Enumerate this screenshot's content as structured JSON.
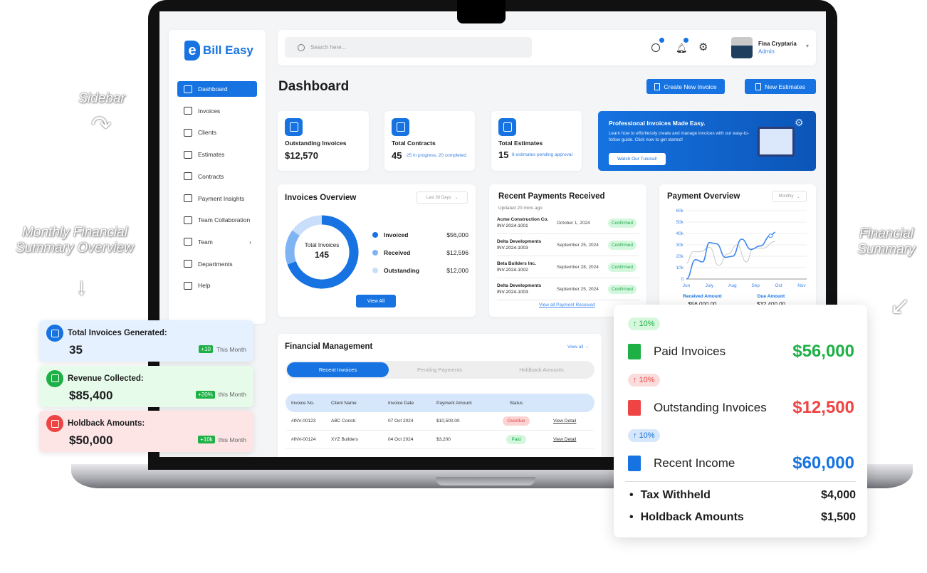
{
  "annotations": {
    "sidebar": "Sidebar",
    "monthly": "Monthly Financial Summary Overview",
    "financial": "Financial Summary"
  },
  "app": {
    "brand": "Bill Easy",
    "logo_letter": "e"
  },
  "sidebar": {
    "items": [
      {
        "label": "Dashboard",
        "icon": "dashboard-icon",
        "active": true
      },
      {
        "label": "Invoices",
        "icon": "invoice-icon"
      },
      {
        "label": "Clients",
        "icon": "clients-icon"
      },
      {
        "label": "Estimates",
        "icon": "estimates-icon"
      },
      {
        "label": "Contracts",
        "icon": "contracts-icon"
      },
      {
        "label": "Payment Insights",
        "icon": "insights-icon"
      },
      {
        "label": "Team Collaboration",
        "icon": "collaboration-icon"
      },
      {
        "label": "Team",
        "icon": "team-icon",
        "chevron": "›"
      },
      {
        "label": "Departments",
        "icon": "departments-icon"
      },
      {
        "label": "Help",
        "icon": "help-icon"
      }
    ]
  },
  "header": {
    "search_placeholder": "Search here...",
    "user_name": "Fina Cryptaria",
    "user_role": "Admin"
  },
  "page": {
    "title": "Dashboard",
    "create_invoice": "Create New Invoice",
    "new_estimates": "New Estimates"
  },
  "stats": [
    {
      "label": "Outstanding Invoices",
      "value": "$12,570",
      "sub": ""
    },
    {
      "label": "Total Contracts",
      "value": "45",
      "sub": "25 in progress, 20 completed"
    },
    {
      "label": "Total Estimates",
      "value": "15",
      "sub": "8 estimates pending approval"
    }
  ],
  "promo": {
    "title": "Professional Invoices Made Easy.",
    "text": "Learn how to effortlessly create and manage invoices with our easy-to-follow guide. Click now to get started!",
    "button": "Watch Our Tutorial!"
  },
  "invoices_overview": {
    "title": "Invoices Overview",
    "range": "Last 30 Days",
    "center_label": "Total Invoices",
    "center_value": "145",
    "view_all": "View All",
    "legend": [
      {
        "name": "Invoiced",
        "value": "$56,000",
        "amount": 56000,
        "color": "#1673e1"
      },
      {
        "name": "Received",
        "value": "$12,596",
        "amount": 12596,
        "color": "#7fb4f3"
      },
      {
        "name": "Outstanding",
        "value": "$12,000",
        "amount": 12000,
        "color": "#c9defa"
      }
    ]
  },
  "recent_payments": {
    "title": "Recent Payments Received",
    "updated": "Updated 20 mins ago",
    "link": "View all Payment Received",
    "rows": [
      {
        "client": "Acme Construction Co.",
        "invoice": "INV-2024-1001",
        "date": "October 1, 2024",
        "status": "Confirmed"
      },
      {
        "client": "Delta Developments",
        "invoice": "INV-2024-1003",
        "date": "September 25, 2024",
        "status": "Confirmed"
      },
      {
        "client": "Beta Builders Inc.",
        "invoice": "INV-2024-1002",
        "date": "September 28, 2024",
        "status": "Confirmed"
      },
      {
        "client": "Delta Developments",
        "invoice": "INV-2024-1003",
        "date": "September 25, 2024",
        "status": "Confirmed"
      }
    ]
  },
  "payment_overview": {
    "title": "Payment Overview",
    "range": "Monthly",
    "received_label": "Received Amount",
    "received_value": "$56,000.00",
    "due_label": "Due Amount",
    "due_value": "$32,400.00"
  },
  "chart_data": {
    "type": "line",
    "categories": [
      "Jun",
      "July",
      "Aug",
      "Sep",
      "Oct",
      "Nov"
    ],
    "yticks": [
      "0",
      "10k",
      "20k",
      "30k",
      "40k",
      "50k",
      "60k"
    ],
    "ylim": [
      0,
      60000
    ],
    "grid": true,
    "series": [
      {
        "color": "#3d86ee",
        "x": [
          0,
          0.4,
          0.7,
          1,
          1.3,
          1.7,
          2,
          2.4,
          2.8,
          3.2,
          3.65,
          3.85
        ],
        "y": [
          0,
          17000,
          15000,
          32000,
          31000,
          19000,
          20000,
          35000,
          26000,
          29000,
          38000,
          41000
        ]
      },
      {
        "color": "#c8c8c8",
        "x": [
          0,
          0.3,
          0.6,
          1,
          1.4,
          1.8,
          2.2,
          2.6,
          2.9,
          3.3,
          3.85
        ],
        "y": [
          14000,
          24000,
          24000,
          28000,
          12000,
          22000,
          30000,
          15000,
          27000,
          27000,
          33000
        ]
      }
    ]
  },
  "financial_management": {
    "title": "Financial Management",
    "view_all": "View all →",
    "tabs": [
      "Recent Invoices",
      "Pending Payments",
      "Holdback Amounts"
    ],
    "columns": [
      "Invoice No.",
      "Client Name",
      "Invoice Date",
      "Payment Amount",
      "Status",
      ""
    ],
    "rows": [
      {
        "no": "#INV-00123",
        "client": "ABC Constr.",
        "date": "07 Oct 2024",
        "amount": "$10,500.00",
        "status": "Overdue",
        "action": "View Detail"
      },
      {
        "no": "#INV-00124",
        "client": "XYZ Builders",
        "date": "04 Oct 2024",
        "amount": "$3,200",
        "status": "Paid",
        "action": "View Detail"
      }
    ]
  },
  "left_cards": [
    {
      "title": "Total Invoices Generated:",
      "value": "35",
      "badge": "+10",
      "period": "This Month"
    },
    {
      "title": "Revenue Collected:",
      "value": "$85,400",
      "badge": "+20%",
      "period": "this Month"
    },
    {
      "title": "Holdback Amounts:",
      "value": "$50,000",
      "badge": "+10k",
      "period": "this Month"
    }
  ],
  "summary": {
    "rows": [
      {
        "change": "↑ 10%",
        "name": "Paid Invoices",
        "amount": "$56,000",
        "color": "#1db045"
      },
      {
        "change": "↑ 10%",
        "name": "Outstanding Invoices",
        "amount": "$12,500",
        "color": "#ef4444"
      },
      {
        "change": "↑ 10%",
        "name": "Recent Income",
        "amount": "$60,000",
        "color": "#1673e1"
      }
    ],
    "bullets": [
      {
        "name": "Tax Withheld",
        "amount": "$4,000"
      },
      {
        "name": "Holdback Amounts",
        "amount": "$1,500"
      }
    ]
  }
}
